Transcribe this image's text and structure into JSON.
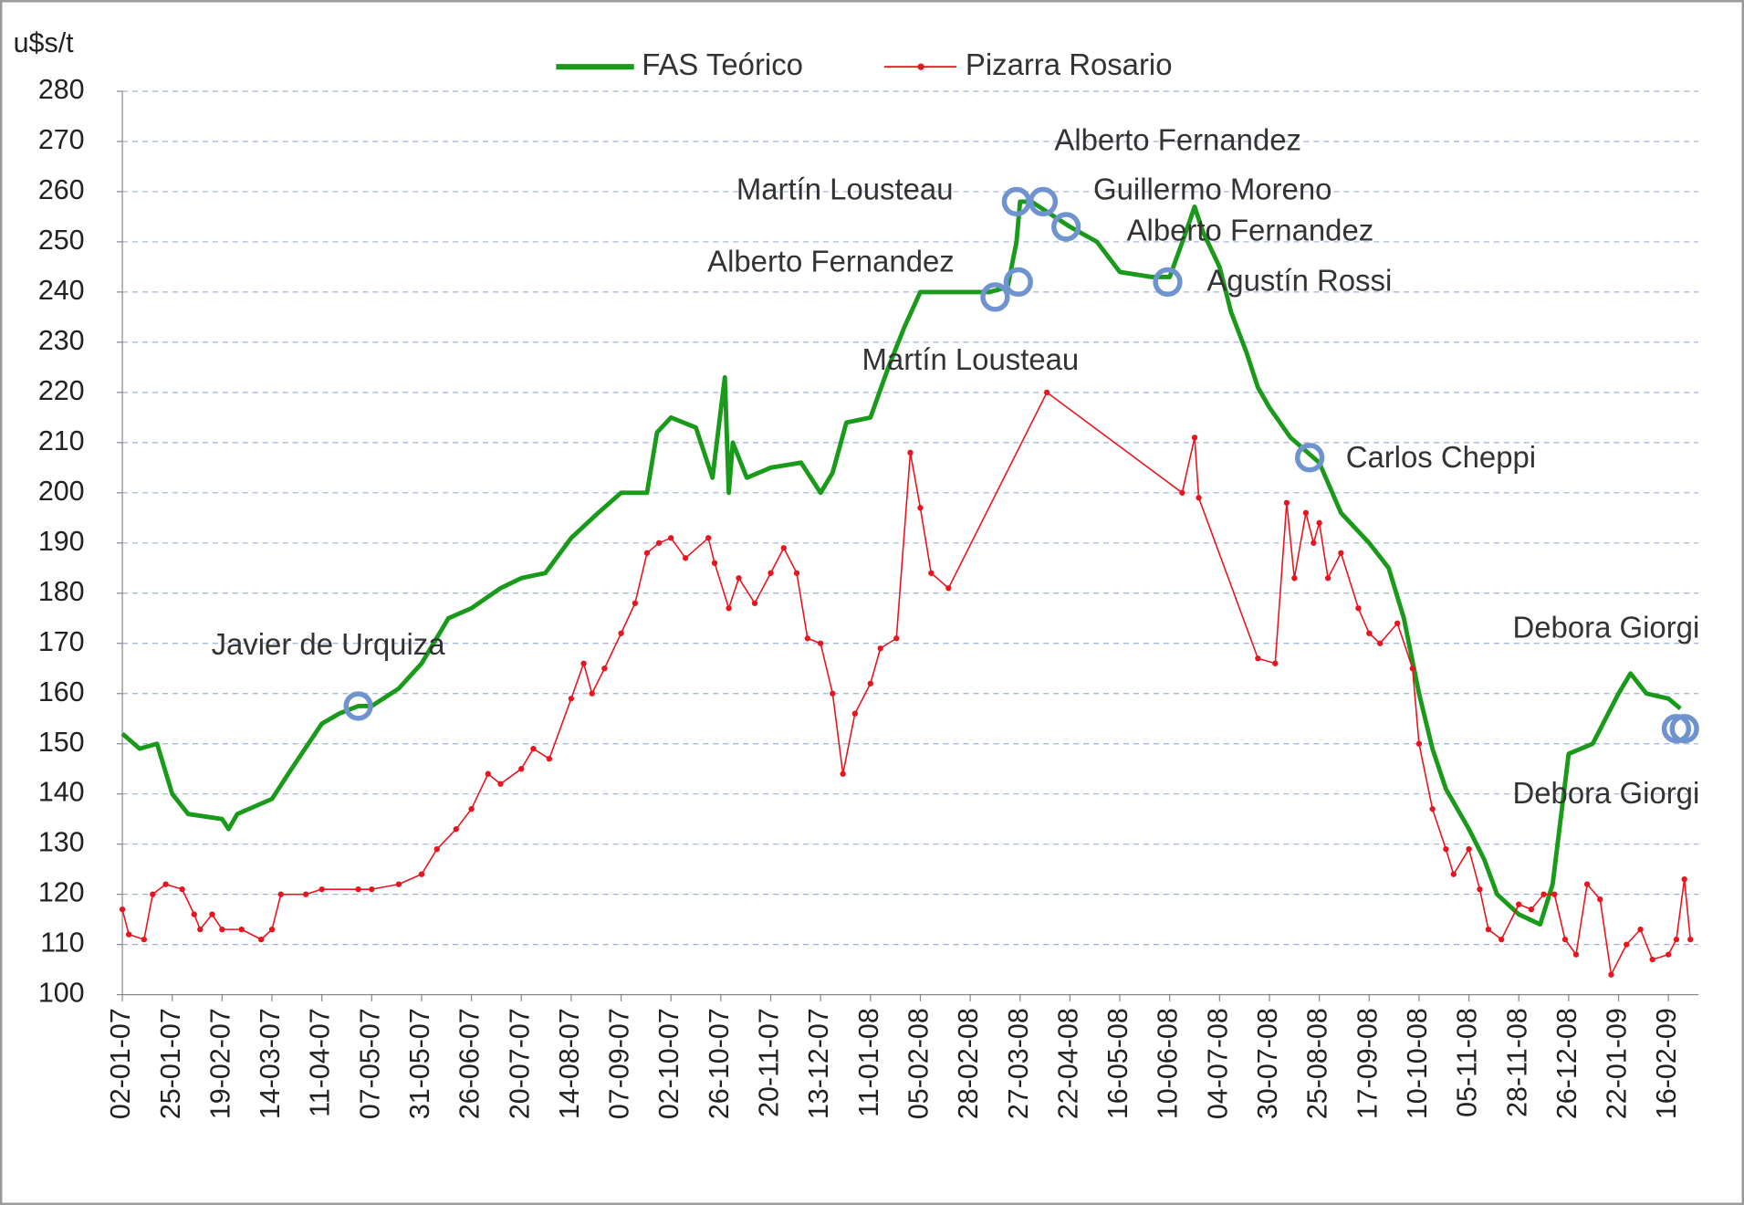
{
  "chart_data": {
    "type": "line",
    "ylabel": "u$s/t",
    "ylim": [
      100,
      280
    ],
    "yticks": [
      100,
      110,
      120,
      130,
      140,
      150,
      160,
      170,
      180,
      190,
      200,
      210,
      220,
      230,
      240,
      250,
      260,
      270,
      280
    ],
    "xlim": [
      "02-01-07",
      "03-03-09"
    ],
    "xticks": [
      "02-01-07",
      "25-01-07",
      "19-02-07",
      "14-03-07",
      "11-04-07",
      "07-05-07",
      "31-05-07",
      "26-06-07",
      "20-07-07",
      "14-08-07",
      "07-09-07",
      "02-10-07",
      "26-10-07",
      "20-11-07",
      "13-12-07",
      "11-01-08",
      "05-02-08",
      "28-02-08",
      "27-03-08",
      "22-04-08",
      "16-05-08",
      "10-06-08",
      "04-07-08",
      "30-07-08",
      "25-08-08",
      "17-09-08",
      "10-10-08",
      "05-11-08",
      "28-11-08",
      "26-12-08",
      "22-01-09",
      "16-02-09"
    ],
    "grid": true,
    "series": [
      {
        "name": "FAS Teórico",
        "color": "#1a9a1a",
        "x": [
          "02-01-07",
          "10-01-07",
          "18-01-07",
          "25-01-07",
          "02-02-07",
          "19-02-07",
          "22-02-07",
          "26-02-07",
          "14-03-07",
          "25-03-07",
          "11-04-07",
          "20-04-07",
          "30-04-07",
          "07-05-07",
          "20-05-07",
          "31-05-07",
          "14-06-07",
          "26-06-07",
          "10-07-07",
          "20-07-07",
          "01-08-07",
          "14-08-07",
          "27-08-07",
          "07-09-07",
          "20-09-07",
          "25-09-07",
          "02-10-07",
          "14-10-07",
          "22-10-07",
          "28-10-07",
          "30-10-07",
          "01-11-07",
          "08-11-07",
          "20-11-07",
          "04-12-07",
          "13-12-07",
          "20-12-07",
          "28-12-07",
          "11-01-08",
          "20-01-08",
          "28-01-08",
          "05-02-08",
          "15-02-08",
          "28-02-08",
          "10-03-08",
          "20-03-08",
          "25-03-08",
          "27-03-08",
          "02-04-08",
          "10-04-08",
          "22-04-08",
          "05-05-08",
          "16-05-08",
          "01-06-08",
          "10-06-08",
          "17-06-08",
          "22-06-08",
          "26-06-08",
          "04-07-08",
          "10-07-08",
          "18-07-08",
          "24-07-08",
          "30-07-08",
          "10-08-08",
          "25-08-08",
          "04-09-08",
          "17-09-08",
          "26-09-08",
          "03-10-08",
          "10-10-08",
          "17-10-08",
          "24-10-08",
          "05-11-08",
          "12-11-08",
          "18-11-08",
          "28-11-08",
          "10-12-08",
          "17-12-08",
          "26-12-08",
          "08-01-09",
          "22-01-09",
          "28-01-09",
          "05-02-09",
          "16-02-09",
          "22-02-09"
        ],
        "values": [
          152,
          149,
          150,
          140,
          136,
          135,
          133,
          136,
          139,
          145,
          154,
          156,
          157.5,
          157.5,
          161,
          166,
          175,
          177,
          181,
          183,
          184,
          191,
          196,
          200,
          200,
          212,
          215,
          213,
          203,
          223,
          200,
          210,
          203,
          205,
          206,
          200,
          204,
          214,
          215,
          225,
          233,
          240,
          240,
          240,
          240,
          241,
          250,
          258,
          258,
          256,
          253,
          250,
          244,
          243,
          243,
          251,
          257,
          252,
          245,
          236,
          228,
          221,
          217,
          211,
          206,
          196,
          190,
          185,
          175,
          160,
          149,
          141,
          133,
          127,
          120,
          116,
          114,
          122,
          148,
          150,
          160,
          164,
          160,
          159,
          157
        ]
      },
      {
        "name": "Pizarra Rosario",
        "color": "#e8141e",
        "x": [
          "02-01-07",
          "05-01-07",
          "12-01-07",
          "16-01-07",
          "22-01-07",
          "30-01-07",
          "05-02-07",
          "08-02-07",
          "14-02-07",
          "19-02-07",
          "28-02-07",
          "09-03-07",
          "14-03-07",
          "19-03-07",
          "02-04-07",
          "11-04-07",
          "30-04-07",
          "07-05-07",
          "20-05-07",
          "31-05-07",
          "08-06-07",
          "18-06-07",
          "26-06-07",
          "04-07-07",
          "10-07-07",
          "20-07-07",
          "26-07-07",
          "03-08-07",
          "14-08-07",
          "20-08-07",
          "24-08-07",
          "30-08-07",
          "07-09-07",
          "14-09-07",
          "20-09-07",
          "26-09-07",
          "02-10-07",
          "09-10-07",
          "20-10-07",
          "23-10-07",
          "30-10-07",
          "04-11-07",
          "12-11-07",
          "20-11-07",
          "26-11-07",
          "02-12-07",
          "07-12-07",
          "13-12-07",
          "20-12-07",
          "26-12-07",
          "02-01-08",
          "11-01-08",
          "16-01-08",
          "24-01-08",
          "31-01-08",
          "05-02-08",
          "10-02-08",
          "18-02-08",
          "10-04-08",
          "16-06-08",
          "22-06-08",
          "24-06-08",
          "24-07-08",
          "02-08-08",
          "08-08-08",
          "12-08-08",
          "18-08-08",
          "22-08-08",
          "25-08-08",
          "29-08-08",
          "04-09-08",
          "12-09-08",
          "17-09-08",
          "22-09-08",
          "30-09-08",
          "07-10-08",
          "10-10-08",
          "17-10-08",
          "24-10-08",
          "28-10-08",
          "05-11-08",
          "10-11-08",
          "14-11-08",
          "20-11-08",
          "28-11-08",
          "05-12-08",
          "12-12-08",
          "18-12-08",
          "24-12-08",
          "30-12-08",
          "05-01-09",
          "12-01-09",
          "18-01-09",
          "26-01-09",
          "02-02-09",
          "08-02-09",
          "16-02-09",
          "20-02-09",
          "24-02-09",
          "27-02-09"
        ],
        "values": [
          117,
          112,
          111,
          120,
          122,
          121,
          116,
          113,
          116,
          113,
          113,
          111,
          113,
          120,
          120,
          121,
          121,
          121,
          122,
          124,
          129,
          133,
          137,
          144,
          142,
          145,
          149,
          147,
          159,
          166,
          160,
          165,
          172,
          178,
          188,
          190,
          191,
          187,
          191,
          186,
          177,
          183,
          178,
          184,
          189,
          184,
          171,
          170,
          160,
          144,
          156,
          162,
          169,
          171,
          208,
          197,
          184,
          181,
          220,
          200,
          211,
          199,
          167,
          166,
          198,
          183,
          196,
          190,
          194,
          183,
          188,
          177,
          172,
          170,
          174,
          165,
          150,
          137,
          129,
          124,
          129,
          121,
          113,
          111,
          118,
          117,
          120,
          120,
          111,
          108,
          122,
          119,
          104,
          110,
          113,
          107,
          108,
          111,
          123,
          111
        ]
      }
    ],
    "markers": [
      {
        "x": "30-04-07",
        "y": 157.5
      },
      {
        "x": "13-03-08",
        "y": 239
      },
      {
        "x": "26-03-08",
        "y": 242
      },
      {
        "x": "25-03-08",
        "y": 258
      },
      {
        "x": "08-04-08",
        "y": 258
      },
      {
        "x": "20-04-08",
        "y": 253
      },
      {
        "x": "09-06-08",
        "y": 242
      },
      {
        "x": "20-08-08",
        "y": 207
      },
      {
        "x": "20-02-09",
        "y": 153
      },
      {
        "x": "24-02-09",
        "y": 153
      }
    ],
    "annotations": [
      "Javier de Urquiza",
      "Alberto Fernandez",
      "Martín Lousteau",
      "Alberto Fernandez",
      "Guillermo Moreno",
      "Alberto Fernandez",
      "Agustín Rossi",
      "Martín Lousteau",
      "Carlos Cheppi",
      "Debora Giorgi",
      "Debora Giorgi"
    ]
  }
}
